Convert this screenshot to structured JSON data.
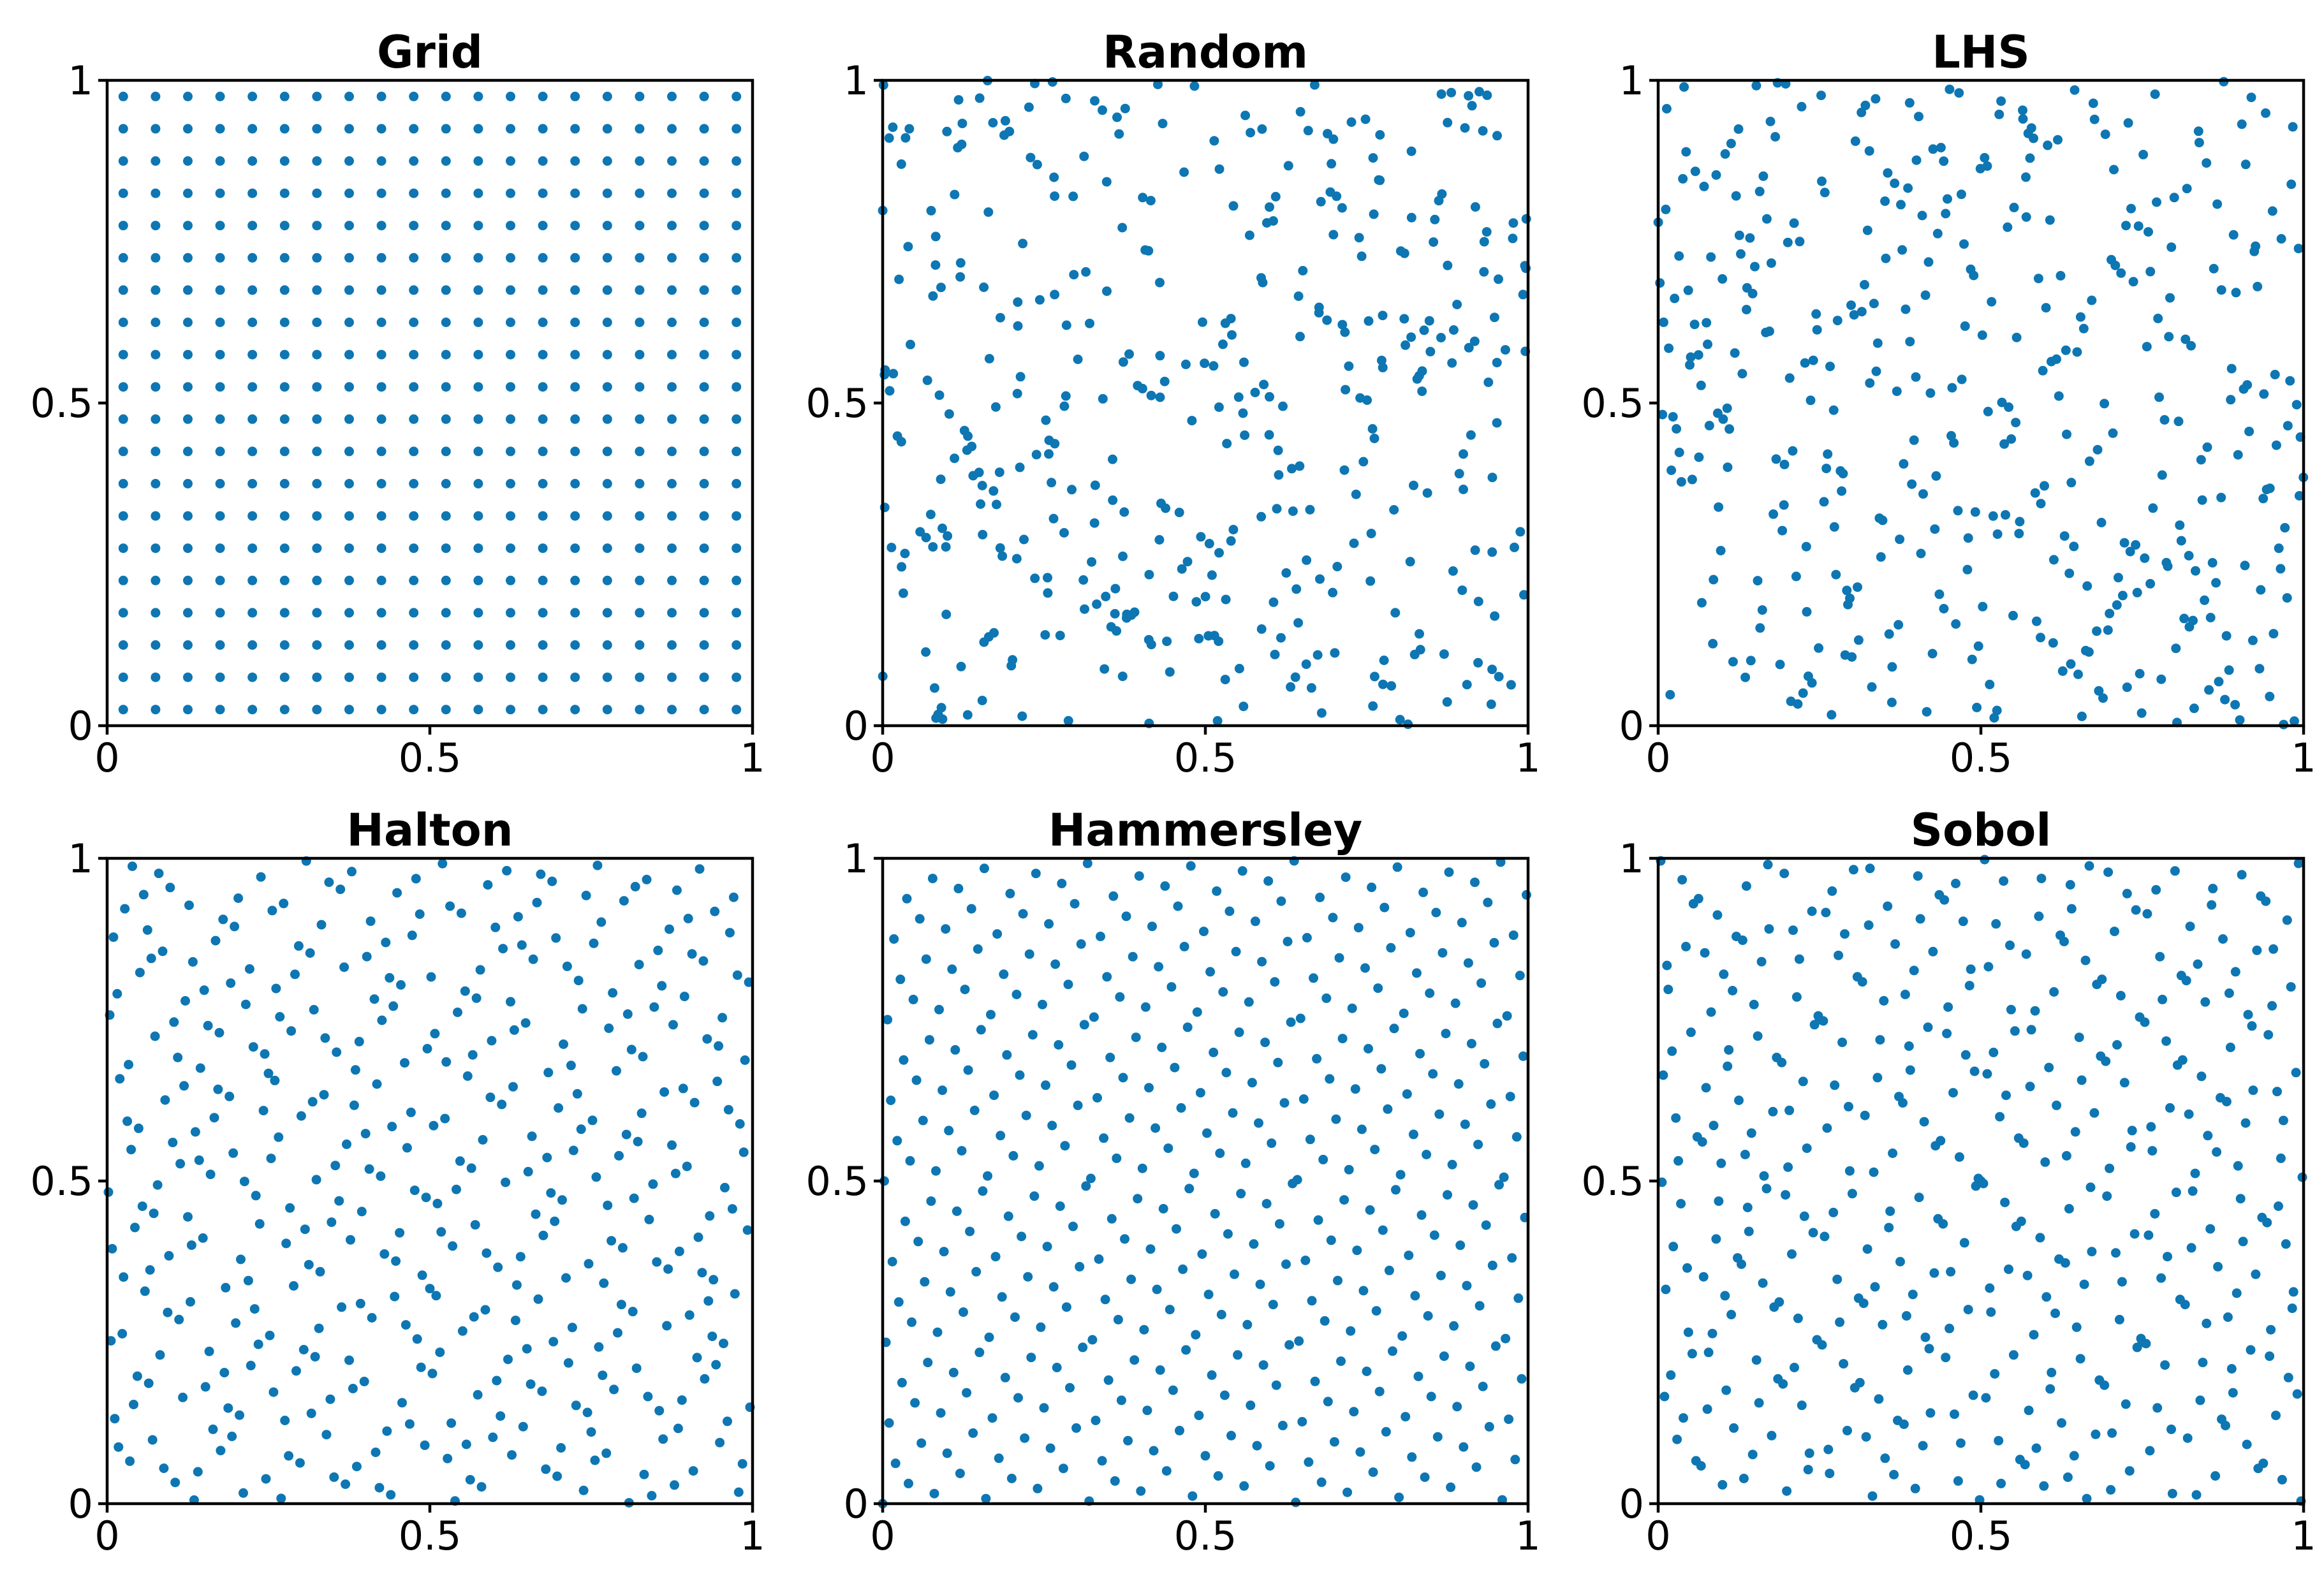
{
  "figure": {
    "point_color": "#0d76b3",
    "panel_titles": [
      "Grid",
      "Random",
      "LHS",
      "Halton",
      "Hammersley",
      "Sobol"
    ]
  },
  "chart_data": [
    {
      "type": "scatter",
      "title": "Grid",
      "xlabel": "",
      "ylabel": "",
      "xlim": [
        0,
        1
      ],
      "ylim": [
        0,
        1
      ],
      "grid": false,
      "x_ticks": [
        "0",
        "0.5",
        "1"
      ],
      "y_ticks": [
        "0",
        "0.5",
        "1"
      ],
      "point_count": 400,
      "points": {
        "generator": "grid",
        "n": 20,
        "values": [
          0.025,
          0.075,
          0.125,
          0.175,
          0.225,
          0.275,
          0.325,
          0.375,
          0.425,
          0.475,
          0.525,
          0.575,
          0.625,
          0.675,
          0.725,
          0.775,
          0.825,
          0.875,
          0.925,
          0.975
        ]
      }
    },
    {
      "type": "scatter",
      "title": "Random",
      "xlabel": "",
      "ylabel": "",
      "xlim": [
        0,
        1
      ],
      "ylim": [
        0,
        1
      ],
      "grid": false,
      "x_ticks": [
        "0",
        "0.5",
        "1"
      ],
      "y_ticks": [
        "0",
        "0.5",
        "1"
      ],
      "point_count": 400,
      "points": {
        "generator": "uniform-random",
        "n": 400
      }
    },
    {
      "type": "scatter",
      "title": "LHS",
      "xlabel": "",
      "ylabel": "",
      "xlim": [
        0,
        1
      ],
      "ylim": [
        0,
        1
      ],
      "grid": false,
      "x_ticks": [
        "0",
        "0.5",
        "1"
      ],
      "y_ticks": [
        "0",
        "0.5",
        "1"
      ],
      "point_count": 400,
      "points": {
        "generator": "latin-hypercube",
        "n": 400
      }
    },
    {
      "type": "scatter",
      "title": "Halton",
      "xlabel": "",
      "ylabel": "",
      "xlim": [
        0,
        1
      ],
      "ylim": [
        0,
        1
      ],
      "grid": false,
      "x_ticks": [
        "0",
        "0.5",
        "1"
      ],
      "y_ticks": [
        "0",
        "0.5",
        "1"
      ],
      "point_count": 400,
      "points": {
        "generator": "halton",
        "n": 400,
        "bases": [
          2,
          3
        ]
      }
    },
    {
      "type": "scatter",
      "title": "Hammersley",
      "xlabel": "",
      "ylabel": "",
      "xlim": [
        0,
        1
      ],
      "ylim": [
        0,
        1
      ],
      "grid": false,
      "x_ticks": [
        "0",
        "0.5",
        "1"
      ],
      "y_ticks": [
        "0",
        "0.5",
        "1"
      ],
      "point_count": 400,
      "points": {
        "generator": "hammersley",
        "n": 400,
        "base": 2
      }
    },
    {
      "type": "scatter",
      "title": "Sobol",
      "xlabel": "",
      "ylabel": "",
      "xlim": [
        0,
        1
      ],
      "ylim": [
        0,
        1
      ],
      "grid": false,
      "x_ticks": [
        "0",
        "0.5",
        "1"
      ],
      "y_ticks": [
        "0",
        "0.5",
        "1"
      ],
      "point_count": 400,
      "points": {
        "generator": "sobol",
        "n": 400
      }
    }
  ]
}
